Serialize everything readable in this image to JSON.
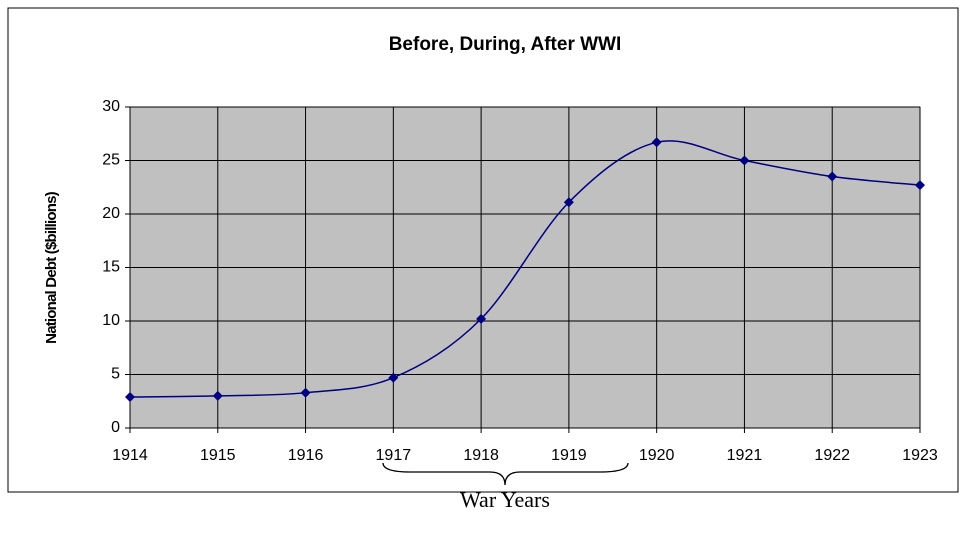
{
  "chart_data": {
    "type": "line",
    "title": "Before, During, After WWI",
    "y_label": "National Debt ($billions)",
    "annotation": "War Years",
    "categories": [
      "1914",
      "1915",
      "1916",
      "1917",
      "1918",
      "1919",
      "1920",
      "1921",
      "1922",
      "1923"
    ],
    "series": [
      {
        "name": "National Debt",
        "color": "#000080",
        "values": [
          2.9,
          3.0,
          3.3,
          4.7,
          10.2,
          21.1,
          26.7,
          25.0,
          23.5,
          22.7
        ]
      }
    ],
    "ylim": [
      0,
      30
    ],
    "yticks": [
      0,
      5,
      10,
      15,
      20,
      25,
      30
    ],
    "grid": true,
    "plot_background": "#c0c0c0"
  }
}
